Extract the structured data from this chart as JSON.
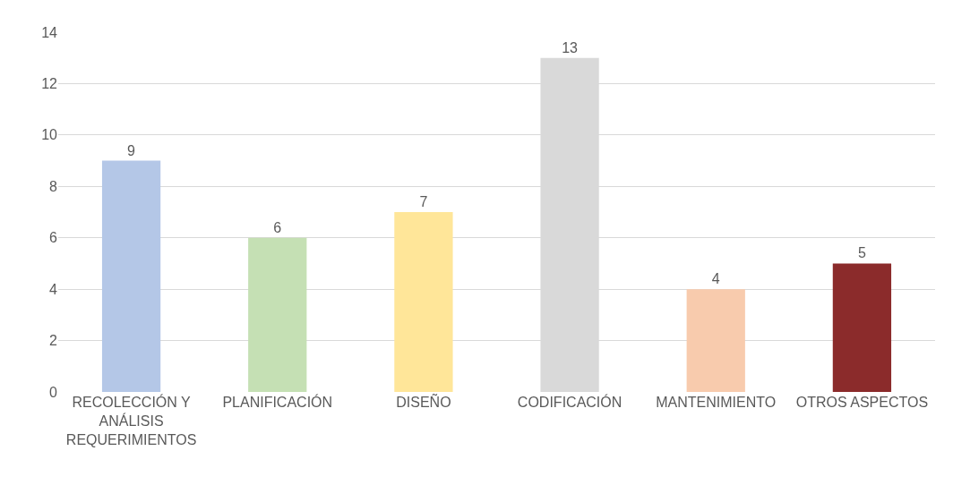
{
  "chart_data": {
    "type": "bar",
    "categories": [
      "RECOLECCIÓN Y\nANÁLISIS\nREQUERIMIENTOS",
      "PLANIFICACIÓN",
      "DISEÑO",
      "CODIFICACIÓN",
      "MANTENIMIENTO",
      "OTROS ASPECTOS"
    ],
    "values": [
      9,
      6,
      7,
      13,
      4,
      5
    ],
    "colors": [
      "#b4c7e7",
      "#c5e0b4",
      "#ffe699",
      "#d9d9d9",
      "#f8cbad",
      "#8b2b2b"
    ],
    "ylim": [
      0,
      14
    ],
    "yticks": [
      0,
      2,
      4,
      6,
      8,
      10,
      12,
      14
    ],
    "grid": "y",
    "data_labels": true
  }
}
